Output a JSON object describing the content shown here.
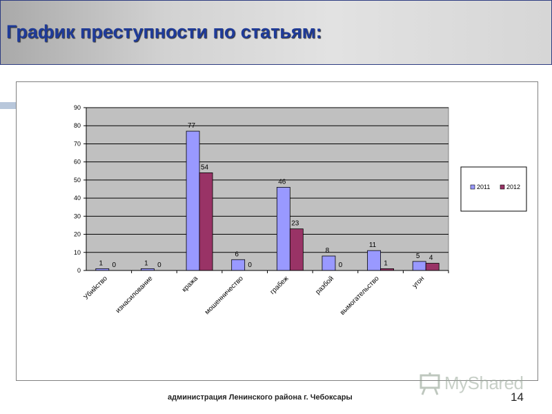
{
  "slide": {
    "title": "График преступности по статьям:",
    "footer": "администрация Ленинского района г. Чебоксары",
    "page_number": "14",
    "logo_text": "MyShared"
  },
  "colors": {
    "title": "#1f3b99",
    "series_2011": "#9999ff",
    "series_2012": "#993366",
    "plot_bg": "#c0c0c0"
  },
  "chart_data": {
    "type": "bar",
    "categories": [
      "Убийство",
      "изнасилование",
      "кража",
      "мошенничество",
      "грабеж",
      "разбой",
      "вымогательство",
      "угон"
    ],
    "series": [
      {
        "name": "2011",
        "values": [
          1,
          1,
          77,
          6,
          46,
          8,
          11,
          5
        ],
        "color": "#9999ff"
      },
      {
        "name": "2012",
        "values": [
          0,
          0,
          54,
          0,
          23,
          0,
          1,
          4
        ],
        "color": "#993366"
      }
    ],
    "ylim": [
      0,
      90
    ],
    "yticks": [
      0,
      10,
      20,
      30,
      40,
      50,
      60,
      70,
      80,
      90
    ],
    "grid": true,
    "legend": "right",
    "data_labels": true
  }
}
